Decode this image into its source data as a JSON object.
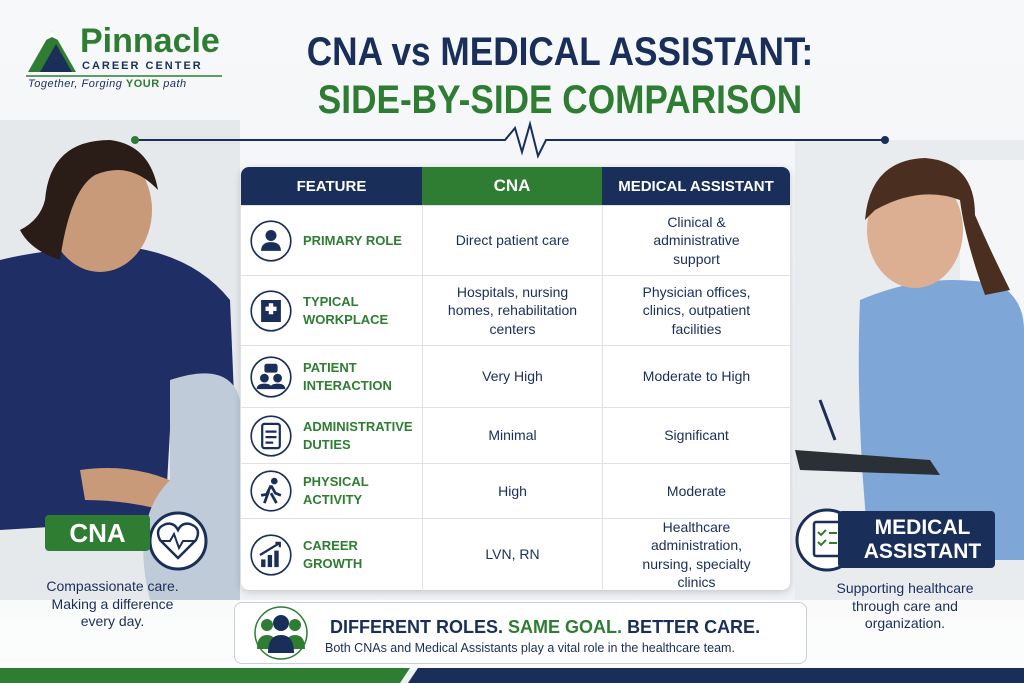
{
  "logo": {
    "name": "Pinnacle",
    "subtitle": "CAREER CENTER",
    "tagline_parts": [
      "Together, Forging",
      "YOUR",
      "path"
    ]
  },
  "header": {
    "title_line1": "CNA vs MEDICAL ASSISTANT:",
    "title_line2": "SIDE-BY-SIDE COMPARISON"
  },
  "table": {
    "headers": [
      "FEATURE",
      "CNA",
      "MEDICAL ASSISTANT"
    ],
    "rows": [
      [
        "PRIMARY ROLE",
        "Direct patient care",
        "Clinical & administrative support"
      ],
      [
        "TYPICAL WORKPLACE",
        "Hospitals, nursing homes, rehabilitation centers",
        "Physician offices, clinics, outpatient facilities"
      ],
      [
        "PATIENT INTERACTION",
        "Very High",
        "Moderate to High"
      ],
      [
        "ADMINISTRATIVE DUTIES",
        "Minimal",
        "Significant"
      ],
      [
        "PHYSICAL ACTIVITY",
        "High",
        "Moderate"
      ],
      [
        "CAREER GROWTH",
        "LVN, RN",
        "Healthcare administration, nursing, specialty clinics"
      ]
    ]
  },
  "left_badge": {
    "label": "CNA",
    "caption": "Compassionate care. Making a difference every day."
  },
  "right_badge": {
    "label": "MEDICAL ASSISTANT",
    "caption": "Supporting healthcare through care and organization."
  },
  "footer": {
    "headline_parts": [
      "DIFFERENT ROLES.",
      "SAME GOAL.",
      "BETTER CARE."
    ],
    "text": "Both CNAs and Medical Assistants play a vital role in the healthcare team."
  }
}
